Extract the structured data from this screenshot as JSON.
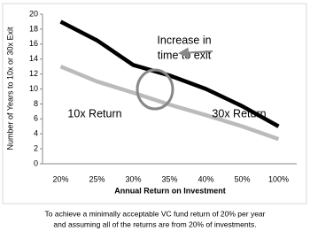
{
  "chart_data": {
    "type": "line",
    "categories": [
      "20%",
      "25%",
      "30%",
      "35%",
      "40%",
      "50%",
      "100%"
    ],
    "series": [
      {
        "name": "30x Return",
        "color": "#000000",
        "values": [
          19,
          16.5,
          13.2,
          11.8,
          10,
          7.7,
          5
        ]
      },
      {
        "name": "10x Return",
        "color": "#bbbbbb",
        "values": [
          13,
          11,
          9.5,
          7.9,
          6.5,
          5,
          3.3
        ]
      }
    ],
    "ylim": [
      0,
      20
    ],
    "yticks": [
      0,
      2,
      4,
      6,
      8,
      10,
      12,
      14,
      16,
      18,
      20
    ],
    "y_label": "Number of Years to 10x or 30x Exit",
    "x_label": "Annual Return on  Investment",
    "annotation_lines": [
      "Increase in",
      "time to exit"
    ],
    "caption_lines": [
      "To achieve a minimally acceptable VC fund return of 20% per year",
      "and assuming all of the returns are from 20% of investments."
    ]
  }
}
